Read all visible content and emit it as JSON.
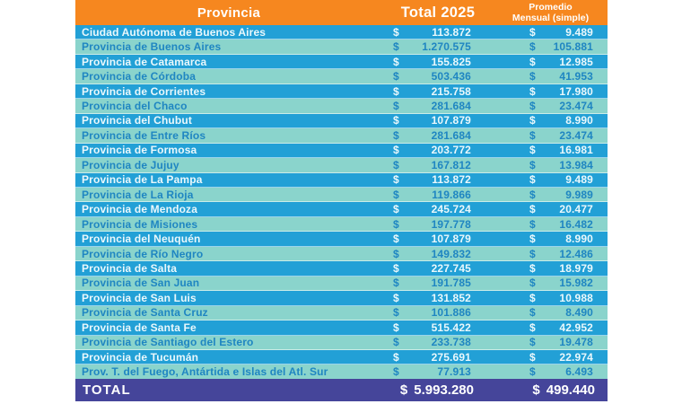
{
  "table": {
    "currency": "$",
    "headers": {
      "province": "Provincia",
      "total": "Total 2025",
      "avg": "Promedio\nMensual (simple)"
    },
    "rows": [
      {
        "name": "Ciudad Autónoma de Buenos Aires",
        "total": "113.872",
        "avg": "9.489"
      },
      {
        "name": "Provincia de Buenos Aires",
        "total": "1.270.575",
        "avg": "105.881"
      },
      {
        "name": "Provincia de Catamarca",
        "total": "155.825",
        "avg": "12.985"
      },
      {
        "name": "Provincia de Córdoba",
        "total": "503.436",
        "avg": "41.953"
      },
      {
        "name": "Provincia de Corrientes",
        "total": "215.758",
        "avg": "17.980"
      },
      {
        "name": "Provincia del Chaco",
        "total": "281.684",
        "avg": "23.474"
      },
      {
        "name": "Provincia del Chubut",
        "total": "107.879",
        "avg": "8.990"
      },
      {
        "name": "Provincia de Entre Ríos",
        "total": "281.684",
        "avg": "23.474"
      },
      {
        "name": "Provincia de Formosa",
        "total": "203.772",
        "avg": "16.981"
      },
      {
        "name": "Provincia de Jujuy",
        "total": "167.812",
        "avg": "13.984"
      },
      {
        "name": "Provincia de La Pampa",
        "total": "113.872",
        "avg": "9.489"
      },
      {
        "name": "Provincia de La Rioja",
        "total": "119.866",
        "avg": "9.989"
      },
      {
        "name": "Provincia de Mendoza",
        "total": "245.724",
        "avg": "20.477"
      },
      {
        "name": "Provincia de Misiones",
        "total": "197.778",
        "avg": "16.482"
      },
      {
        "name": "Provincia del Neuquén",
        "total": "107.879",
        "avg": "8.990"
      },
      {
        "name": "Provincia de Río Negro",
        "total": "149.832",
        "avg": "12.486"
      },
      {
        "name": "Provincia de Salta",
        "total": "227.745",
        "avg": "18.979"
      },
      {
        "name": "Provincia de San Juan",
        "total": "191.785",
        "avg": "15.982"
      },
      {
        "name": "Provincia de San Luis",
        "total": "131.852",
        "avg": "10.988"
      },
      {
        "name": "Provincia de Santa Cruz",
        "total": "101.886",
        "avg": "8.490"
      },
      {
        "name": "Provincia de Santa Fe",
        "total": "515.422",
        "avg": "42.952"
      },
      {
        "name": "Provincia de Santiago del Estero",
        "total": "233.738",
        "avg": "19.478"
      },
      {
        "name": "Provincia de Tucumán",
        "total": "275.691",
        "avg": "22.974"
      },
      {
        "name": "Prov. T. del Fuego, Antártida e Islas del Atl. Sur",
        "total": "77.913",
        "avg": "6.493"
      }
    ],
    "total_row": {
      "label": "TOTAL",
      "total": "5.993.280",
      "avg": "499.440"
    }
  },
  "colors": {
    "page_bg": "#FFFFFF",
    "header_bg": "#F6871F",
    "row_blue": "#22A0D6",
    "row_teal": "#8AD4CC",
    "text_on_blue": "#EAF8FC",
    "text_on_teal": "#1F86C2",
    "total_bg": "#45459A",
    "total_text": "#FFFFFF"
  },
  "chart_data": {
    "type": "table",
    "title": "",
    "columns": [
      "Provincia",
      "Total 2025",
      "Promedio Mensual (simple)"
    ],
    "currency": "$",
    "rows": [
      [
        "Ciudad Autónoma de Buenos Aires",
        113872,
        9489
      ],
      [
        "Provincia de Buenos Aires",
        1270575,
        105881
      ],
      [
        "Provincia de Catamarca",
        155825,
        12985
      ],
      [
        "Provincia de Córdoba",
        503436,
        41953
      ],
      [
        "Provincia de Corrientes",
        215758,
        17980
      ],
      [
        "Provincia del Chaco",
        281684,
        23474
      ],
      [
        "Provincia del Chubut",
        107879,
        8990
      ],
      [
        "Provincia de Entre Ríos",
        281684,
        23474
      ],
      [
        "Provincia de Formosa",
        203772,
        16981
      ],
      [
        "Provincia de Jujuy",
        167812,
        13984
      ],
      [
        "Provincia de La Pampa",
        113872,
        9489
      ],
      [
        "Provincia de La Rioja",
        119866,
        9989
      ],
      [
        "Provincia de Mendoza",
        245724,
        20477
      ],
      [
        "Provincia de Misiones",
        197778,
        16482
      ],
      [
        "Provincia del Neuquén",
        107879,
        8990
      ],
      [
        "Provincia de Río Negro",
        149832,
        12486
      ],
      [
        "Provincia de Salta",
        227745,
        18979
      ],
      [
        "Provincia de San Juan",
        191785,
        15982
      ],
      [
        "Provincia de San Luis",
        131852,
        10988
      ],
      [
        "Provincia de Santa Cruz",
        101886,
        8490
      ],
      [
        "Provincia de Santa Fe",
        515422,
        42952
      ],
      [
        "Provincia de Santiago del Estero",
        233738,
        19478
      ],
      [
        "Provincia de Tucumán",
        275691,
        22974
      ],
      [
        "Prov. T. del Fuego, Antártida e Islas del Atl. Sur",
        77913,
        6493
      ]
    ],
    "total_row": [
      "TOTAL",
      5993280,
      499440
    ],
    "layout": {
      "header_position": "top",
      "striped": true,
      "stripe_order": [
        "blue",
        "teal"
      ],
      "grid": false
    }
  }
}
